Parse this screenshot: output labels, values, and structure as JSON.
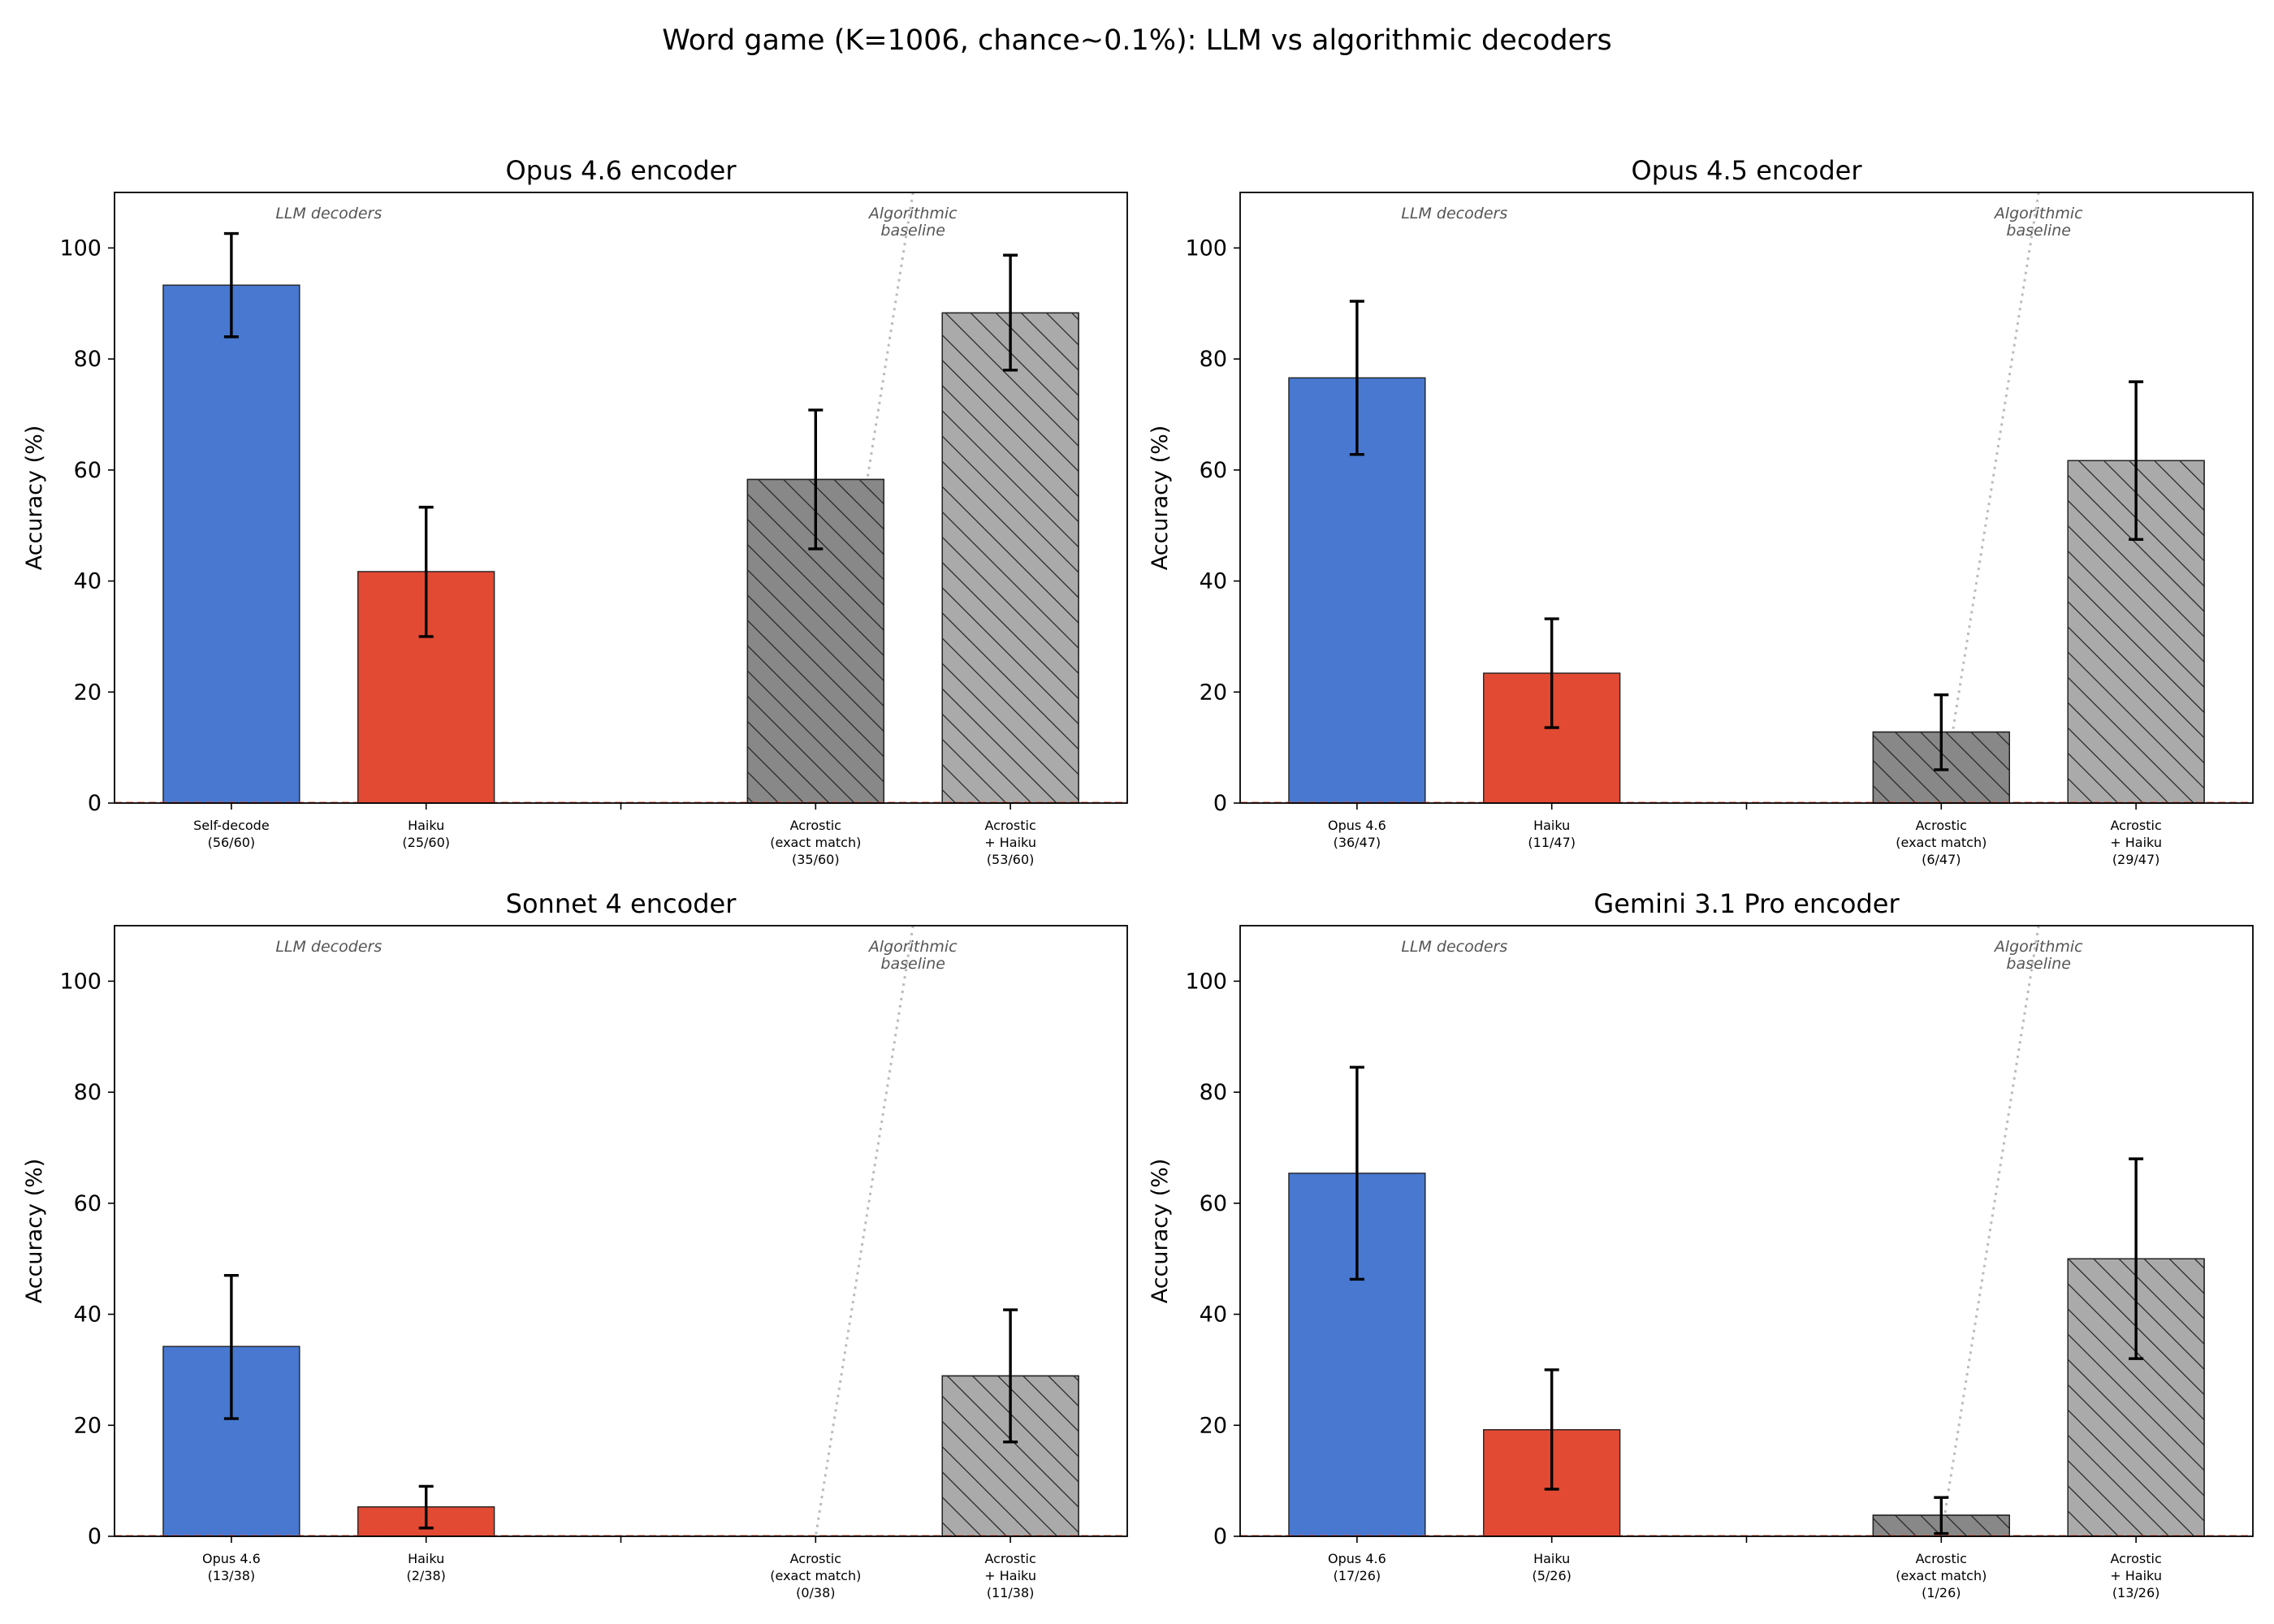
{
  "figure": {
    "title": "Word game (K=1006, chance~0.1%): LLM vs algorithmic decoders"
  },
  "styles": {
    "colors": {
      "self_decode": "#4878d0",
      "haiku": "#e24a33",
      "acrostic_exact": "#888888",
      "acrostic_haiku": "#aaaaaa",
      "divider": "#bbbbbb",
      "chance_line": "#e24a33",
      "section_label": "#555555"
    },
    "hatched_bars": [
      "Acrostic (exact match)",
      "Acrostic + Haiku"
    ]
  },
  "chart_data": [
    {
      "type": "bar",
      "title": "Opus 4.6 encoder",
      "ylabel": "Accuracy (%)",
      "ylim": [
        0,
        110
      ],
      "yticks": [
        0,
        20,
        40,
        60,
        80,
        100
      ],
      "grid": false,
      "section_labels": {
        "left": [
          "LLM decoders"
        ],
        "right": [
          "Algorithmic",
          "baseline"
        ]
      },
      "chance_line": 0.1,
      "categories": [
        {
          "lines": [
            "Self-decode",
            "(56/60)"
          ],
          "value": 93.3,
          "err_low": 84.0,
          "err_high": 102.6,
          "color": "#4878d0",
          "hatch": false
        },
        {
          "lines": [
            "Haiku",
            "(25/60)"
          ],
          "value": 41.7,
          "err_low": 30.0,
          "err_high": 53.3,
          "color": "#e24a33",
          "hatch": false
        },
        {
          "lines": [
            ""
          ],
          "value": null,
          "color": null,
          "hatch": false
        },
        {
          "lines": [
            "Acrostic",
            "(exact match)",
            "(35/60)"
          ],
          "value": 58.3,
          "err_low": 45.8,
          "err_high": 70.8,
          "color": "#888888",
          "hatch": true
        },
        {
          "lines": [
            "Acrostic",
            "+ Haiku",
            "(53/60)"
          ],
          "value": 88.3,
          "err_low": 78.0,
          "err_high": 98.7,
          "color": "#aaaaaa",
          "hatch": true
        }
      ]
    },
    {
      "type": "bar",
      "title": "Opus 4.5 encoder",
      "ylabel": "Accuracy (%)",
      "ylim": [
        0,
        110
      ],
      "yticks": [
        0,
        20,
        40,
        60,
        80,
        100
      ],
      "grid": false,
      "section_labels": {
        "left": [
          "LLM decoders"
        ],
        "right": [
          "Algorithmic",
          "baseline"
        ]
      },
      "chance_line": 0.1,
      "categories": [
        {
          "lines": [
            "Opus 4.6",
            "(36/47)"
          ],
          "value": 76.6,
          "err_low": 62.8,
          "err_high": 90.4,
          "color": "#4878d0",
          "hatch": false
        },
        {
          "lines": [
            "Haiku",
            "(11/47)"
          ],
          "value": 23.4,
          "err_low": 13.6,
          "err_high": 33.2,
          "color": "#e24a33",
          "hatch": false
        },
        {
          "lines": [
            ""
          ],
          "value": null,
          "color": null,
          "hatch": false
        },
        {
          "lines": [
            "Acrostic",
            "(exact match)",
            "(6/47)"
          ],
          "value": 12.8,
          "err_low": 6.0,
          "err_high": 19.5,
          "color": "#888888",
          "hatch": true
        },
        {
          "lines": [
            "Acrostic",
            "+ Haiku",
            "(29/47)"
          ],
          "value": 61.7,
          "err_low": 47.5,
          "err_high": 75.9,
          "color": "#aaaaaa",
          "hatch": true
        }
      ]
    },
    {
      "type": "bar",
      "title": "Sonnet 4 encoder",
      "ylabel": "Accuracy (%)",
      "ylim": [
        0,
        110
      ],
      "yticks": [
        0,
        20,
        40,
        60,
        80,
        100
      ],
      "grid": false,
      "section_labels": {
        "left": [
          "LLM decoders"
        ],
        "right": [
          "Algorithmic",
          "baseline"
        ]
      },
      "chance_line": 0.1,
      "categories": [
        {
          "lines": [
            "Opus 4.6",
            "(13/38)"
          ],
          "value": 34.2,
          "err_low": 21.2,
          "err_high": 47.0,
          "color": "#4878d0",
          "hatch": false
        },
        {
          "lines": [
            "Haiku",
            "(2/38)"
          ],
          "value": 5.3,
          "err_low": 1.5,
          "err_high": 9.0,
          "color": "#e24a33",
          "hatch": false
        },
        {
          "lines": [
            ""
          ],
          "value": null,
          "color": null,
          "hatch": false
        },
        {
          "lines": [
            "Acrostic",
            "(exact match)",
            "(0/38)"
          ],
          "value": 0,
          "err_low": 0,
          "err_high": 0,
          "color": "#888888",
          "hatch": true
        },
        {
          "lines": [
            "Acrostic",
            "+ Haiku",
            "(11/38)"
          ],
          "value": 28.9,
          "err_low": 17.0,
          "err_high": 40.8,
          "color": "#aaaaaa",
          "hatch": true
        }
      ]
    },
    {
      "type": "bar",
      "title": "Gemini 3.1 Pro encoder",
      "ylabel": "Accuracy (%)",
      "ylim": [
        0,
        110
      ],
      "yticks": [
        0,
        20,
        40,
        60,
        80,
        100
      ],
      "grid": false,
      "section_labels": {
        "left": [
          "LLM decoders"
        ],
        "right": [
          "Algorithmic",
          "baseline"
        ]
      },
      "chance_line": 0.1,
      "categories": [
        {
          "lines": [
            "Opus 4.6",
            "(17/26)"
          ],
          "value": 65.4,
          "err_low": 46.3,
          "err_high": 84.5,
          "color": "#4878d0",
          "hatch": false
        },
        {
          "lines": [
            "Haiku",
            "(5/26)"
          ],
          "value": 19.2,
          "err_low": 8.5,
          "err_high": 30.0,
          "color": "#e24a33",
          "hatch": false
        },
        {
          "lines": [
            ""
          ],
          "value": null,
          "color": null,
          "hatch": false
        },
        {
          "lines": [
            "Acrostic",
            "(exact match)",
            "(1/26)"
          ],
          "value": 3.8,
          "err_low": 0.5,
          "err_high": 7.0,
          "color": "#888888",
          "hatch": true
        },
        {
          "lines": [
            "Acrostic",
            "+ Haiku",
            "(13/26)"
          ],
          "value": 50.0,
          "err_low": 32.0,
          "err_high": 68.0,
          "color": "#aaaaaa",
          "hatch": true
        }
      ]
    }
  ]
}
